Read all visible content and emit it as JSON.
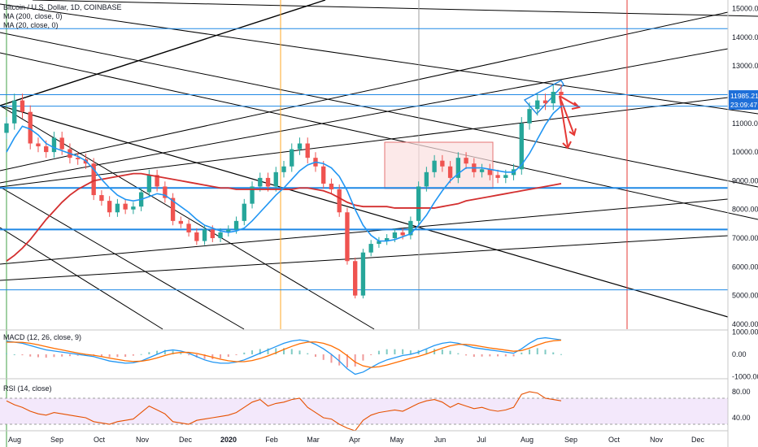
{
  "header": {
    "title": "Bitcoin / U.S. Dollar, 1D, COINBASE",
    "ma200_label": "MA (200, close, 0)",
    "ma20_label": "MA (20, close, 0)"
  },
  "price_badge": {
    "price": "11985.21",
    "countdown": "23:09:47"
  },
  "macd_label": "MACD (12, 26, close, 9)",
  "rsi_label": "RSI (14, close)",
  "colors": {
    "up": "#26a69a",
    "down": "#ef5350",
    "ma20": "#2196f3",
    "ma200": "#d32f2f",
    "blue_line": "#1e88e5",
    "black_line": "#000000",
    "box_fill": "#fbe0e0",
    "box_stroke": "#e57373",
    "rsi_fill": "#f3e8fb",
    "rsi_line": "#e65100",
    "badge_blue": "#1e6fd9",
    "arrow": "#e53935"
  },
  "chart_data": [
    {
      "type": "candlestick",
      "title": "Bitcoin / U.S. Dollar, 1D, COINBASE",
      "x_tick_labels": [
        "Aug",
        "Sep",
        "Oct",
        "Nov",
        "Dec",
        "2020",
        "Feb",
        "Mar",
        "Apr",
        "May",
        "Jun",
        "Jul",
        "Aug",
        "Sep",
        "Oct",
        "Nov",
        "Dec"
      ],
      "y_tick_labels": [
        "15000.00",
        "14000.00",
        "13000.00",
        "12000.00",
        "11000.00",
        "10000.00",
        "9000.00",
        "8000.00",
        "7000.00",
        "6000.00",
        "5000.00",
        "4000.00"
      ],
      "ylim": [
        3800,
        15300
      ],
      "closes": [
        11000,
        11800,
        11400,
        10300,
        10200,
        10000,
        10500,
        10100,
        9800,
        9750,
        9600,
        8500,
        8300,
        7900,
        8200,
        8000,
        8100,
        8600,
        9200,
        8800,
        8400,
        7600,
        7500,
        7200,
        6900,
        7300,
        7000,
        7200,
        7300,
        7600,
        8200,
        8800,
        9100,
        8800,
        9300,
        9500,
        10100,
        10300,
        9800,
        9500,
        8900,
        8700,
        7900,
        6200,
        5000,
        6500,
        6800,
        6900,
        7000,
        7200,
        7100,
        7600,
        8800,
        9300,
        9700,
        9500,
        9100,
        9800,
        9600,
        9300,
        9400,
        9200,
        9100,
        9200,
        9400,
        11000,
        11500,
        11800,
        11700,
        12100,
        11985
      ],
      "ma20": [
        10000,
        10500,
        10900,
        10800,
        10600,
        10300,
        10150,
        10050,
        9950,
        9850,
        9700,
        9400,
        9050,
        8750,
        8500,
        8350,
        8300,
        8350,
        8450,
        8550,
        8500,
        8300,
        8100,
        7900,
        7650,
        7450,
        7350,
        7250,
        7200,
        7250,
        7350,
        7600,
        7900,
        8200,
        8500,
        8750,
        9050,
        9350,
        9550,
        9650,
        9600,
        9450,
        9150,
        8650,
        8000,
        7450,
        7100,
        6900,
        6900,
        6950,
        7050,
        7150,
        7450,
        7800,
        8250,
        8650,
        9000,
        9250,
        9450,
        9450,
        9450,
        9400,
        9350,
        9300,
        9300,
        9550,
        9950,
        10450,
        10950,
        11350,
        11600
      ],
      "ma200": [
        6200,
        6400,
        6650,
        6950,
        7300,
        7650,
        7950,
        8250,
        8500,
        8700,
        8850,
        9000,
        9050,
        9100,
        9150,
        9200,
        9250,
        9250,
        9200,
        9150,
        9100,
        9050,
        9000,
        8950,
        8900,
        8850,
        8800,
        8750,
        8750,
        8700,
        8700,
        8700,
        8700,
        8700,
        8700,
        8700,
        8700,
        8750,
        8750,
        8700,
        8650,
        8550,
        8400,
        8250,
        8150,
        8100,
        8100,
        8100,
        8100,
        8050,
        8050,
        8050,
        8050,
        8050,
        8050,
        8100,
        8150,
        8200,
        8300,
        8350,
        8400,
        8450,
        8500,
        8550,
        8600,
        8650,
        8700,
        8750,
        8800,
        8850,
        8900
      ],
      "horizontal_levels": [
        14300,
        12000,
        11600,
        8750,
        7300,
        5200
      ]
    },
    {
      "type": "line",
      "title": "MACD (12, 26, close, 9)",
      "y_tick_labels": [
        "1000.00",
        "0.00",
        "-1000.00"
      ],
      "ylim": [
        -1100,
        1100
      ],
      "macd": [
        600,
        550,
        500,
        400,
        300,
        200,
        150,
        100,
        50,
        0,
        -50,
        -100,
        -200,
        -300,
        -350,
        -400,
        -380,
        -300,
        -150,
        0,
        150,
        200,
        150,
        50,
        -100,
        -250,
        -350,
        -400,
        -400,
        -350,
        -250,
        -100,
        50,
        200,
        350,
        500,
        600,
        650,
        600,
        450,
        250,
        0,
        -300,
        -650,
        -900,
        -800,
        -600,
        -400,
        -250,
        -150,
        -50,
        0,
        100,
        250,
        400,
        500,
        550,
        500,
        400,
        300,
        250,
        200,
        150,
        100,
        50,
        250,
        500,
        700,
        750,
        700,
        650
      ],
      "signal": [
        550,
        550,
        540,
        500,
        430,
        350,
        270,
        200,
        130,
        60,
        0,
        -40,
        -100,
        -170,
        -230,
        -290,
        -320,
        -310,
        -250,
        -160,
        -50,
        40,
        90,
        90,
        40,
        -40,
        -130,
        -220,
        -290,
        -330,
        -330,
        -280,
        -190,
        -70,
        70,
        220,
        360,
        480,
        550,
        560,
        500,
        380,
        200,
        -60,
        -350,
        -520,
        -590,
        -560,
        -480,
        -380,
        -280,
        -180,
        -90,
        20,
        150,
        280,
        390,
        450,
        450,
        410,
        350,
        290,
        240,
        190,
        140,
        170,
        280,
        420,
        540,
        610,
        640
      ]
    },
    {
      "type": "line",
      "title": "RSI (14, close)",
      "y_tick_labels": [
        "80.00",
        "40.00"
      ],
      "ylim": [
        20,
        100
      ],
      "band": [
        30,
        70
      ],
      "values": [
        66,
        60,
        56,
        50,
        46,
        44,
        48,
        46,
        44,
        42,
        40,
        34,
        32,
        30,
        34,
        36,
        38,
        48,
        58,
        52,
        46,
        34,
        32,
        30,
        36,
        38,
        40,
        42,
        44,
        48,
        56,
        64,
        68,
        58,
        62,
        64,
        68,
        70,
        56,
        48,
        40,
        38,
        30,
        24,
        20,
        36,
        44,
        48,
        50,
        52,
        50,
        56,
        62,
        66,
        68,
        64,
        56,
        62,
        58,
        54,
        56,
        52,
        50,
        52,
        56,
        76,
        80,
        78,
        70,
        68,
        66
      ]
    }
  ]
}
